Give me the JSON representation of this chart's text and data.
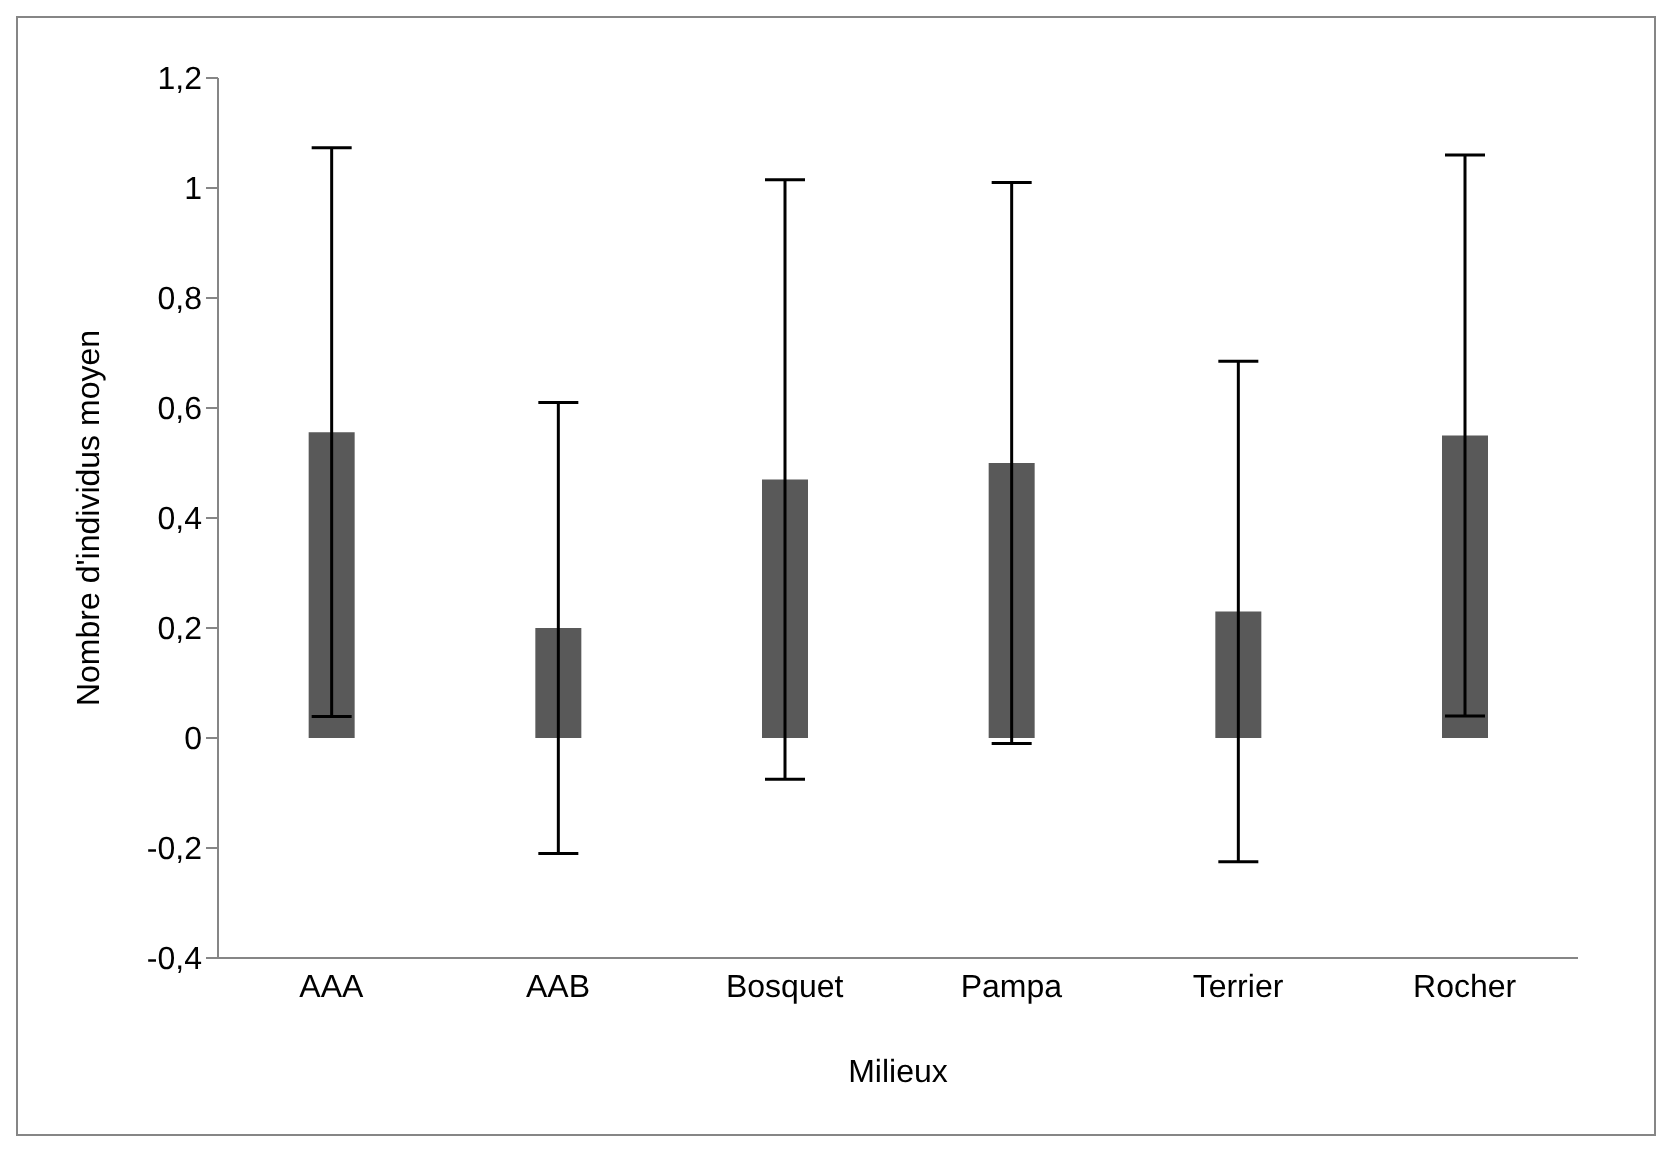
{
  "chart_data": {
    "type": "bar",
    "xlabel": "Milieux",
    "ylabel": "Nombre d'individus moyen",
    "categories": [
      "AAA",
      "AAB",
      "Bosquet",
      "Pampa",
      "Terrier",
      "Rocher"
    ],
    "values": [
      0.556,
      0.2,
      0.47,
      0.5,
      0.23,
      0.55
    ],
    "errors": [
      0.517,
      0.41,
      0.545,
      0.51,
      0.455,
      0.51
    ],
    "color": "#595959",
    "ylim": [
      -0.4,
      1.2
    ],
    "yticks": [
      {
        "value": -0.4,
        "label": "-0,4"
      },
      {
        "value": -0.2,
        "label": "-0,2"
      },
      0,
      {
        "value": 0.2,
        "label": "0,2"
      },
      {
        "value": 0.4,
        "label": "0,4"
      },
      {
        "value": 0.6,
        "label": "0,6"
      },
      {
        "value": 0.8,
        "label": "0,8"
      },
      1,
      {
        "value": 1.2,
        "label": "1,2"
      }
    ],
    "grid": false,
    "legend": false
  }
}
